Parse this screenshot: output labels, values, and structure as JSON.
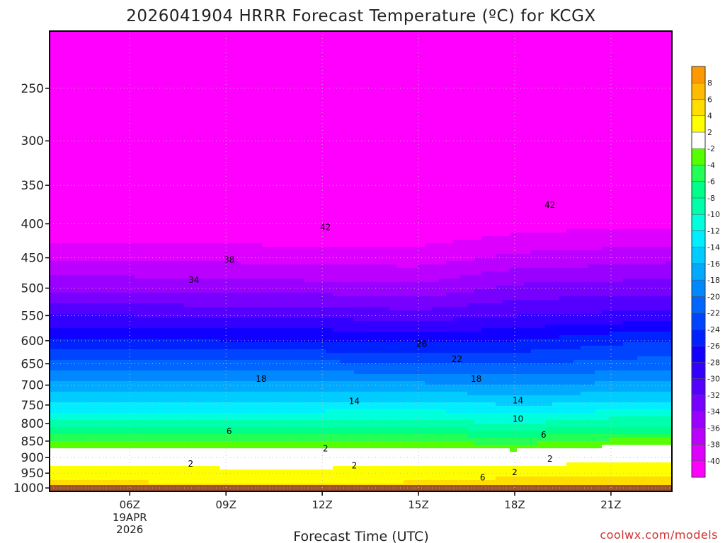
{
  "chart_data": {
    "type": "heatmap",
    "title": "2026041904 HRRR Forecast Temperature (ºC) for KCGX",
    "xlabel": "Forecast Time (UTC)",
    "ylabel": "",
    "credit": "coolwx.com/models",
    "x_range_hours": [
      3.5,
      22.9
    ],
    "y_axis_scale": "log-pressure",
    "y_range_hpa": [
      1000,
      200
    ],
    "x_ticks": [
      {
        "hour": 6,
        "label": "06Z",
        "sub": [
          "19APR",
          "2026"
        ]
      },
      {
        "hour": 9,
        "label": "09Z",
        "sub": []
      },
      {
        "hour": 12,
        "label": "12Z",
        "sub": []
      },
      {
        "hour": 15,
        "label": "15Z",
        "sub": []
      },
      {
        "hour": 18,
        "label": "18Z",
        "sub": []
      },
      {
        "hour": 21,
        "label": "21Z",
        "sub": []
      }
    ],
    "y_ticks": [
      250,
      300,
      350,
      400,
      450,
      500,
      550,
      600,
      650,
      700,
      750,
      800,
      850,
      900,
      950,
      1000
    ],
    "ground_pressure_hpa": 990,
    "ground_color": "#a0522d",
    "colorbar": {
      "levels": [
        -42,
        -40,
        -38,
        -36,
        -34,
        -32,
        -30,
        -28,
        -26,
        -24,
        -22,
        -20,
        -18,
        -16,
        -14,
        -12,
        -10,
        -8,
        -6,
        -4,
        -2,
        2,
        4,
        6,
        8,
        10
      ],
      "labels": [
        "-40",
        "-38",
        "-36",
        "-34",
        "-32",
        "-30",
        "-28",
        "-26",
        "-24",
        "-22",
        "-20",
        "-18",
        "-16",
        "-14",
        "-12",
        "-10",
        "-8",
        "-6",
        "-4",
        "-2",
        "2",
        "4",
        "6",
        "8"
      ],
      "colors": [
        "#ff00ff",
        "#dd00ff",
        "#bb00ff",
        "#9900ff",
        "#7700ff",
        "#5500ff",
        "#3300ff",
        "#1100ff",
        "#0022ff",
        "#0044ff",
        "#0066ff",
        "#0088ff",
        "#00aaff",
        "#00ccff",
        "#00eeff",
        "#00ffdd",
        "#00ffaa",
        "#00ff88",
        "#22ff55",
        "#55ff00",
        "#ffffff",
        "#ffff00",
        "#ffdd00",
        "#ffbb00",
        "#ff9900"
      ]
    },
    "temperature_profile": {
      "hours": [
        3.5,
        6,
        9,
        12,
        15,
        18,
        21,
        22.9
      ],
      "pressures": [
        990,
        950,
        900,
        850,
        800,
        750,
        700,
        650,
        600,
        550,
        500,
        450,
        400,
        350,
        300,
        250,
        200
      ],
      "temps_c": [
        [
          4.5,
          3.0,
          1.0,
          -4.0,
          -9.0,
          -13.5,
          -17.0,
          -21.0,
          -25.5,
          -30.0,
          -34.5,
          -38.5,
          -42.0,
          -45.0,
          -48.0,
          -50.0,
          -52.0
        ],
        [
          4.5,
          3.0,
          1.0,
          -4.0,
          -9.0,
          -13.5,
          -17.0,
          -21.0,
          -25.5,
          -30.0,
          -34.5,
          -38.5,
          -42.0,
          -44.5,
          -47.5,
          -49.5,
          -52.0
        ],
        [
          4.0,
          2.5,
          1.0,
          -4.0,
          -9.0,
          -13.5,
          -17.5,
          -21.5,
          -26.0,
          -30.5,
          -35.0,
          -38.5,
          -42.0,
          -44.5,
          -47.5,
          -49.5,
          -52.0
        ],
        [
          4.0,
          2.5,
          1.0,
          -4.0,
          -9.0,
          -13.5,
          -17.5,
          -21.5,
          -26.0,
          -30.5,
          -35.0,
          -39.0,
          -42.5,
          -45.0,
          -48.0,
          -50.0,
          -52.0
        ],
        [
          4.5,
          3.0,
          1.0,
          -4.0,
          -9.0,
          -13.0,
          -17.5,
          -22.0,
          -26.5,
          -31.0,
          -35.5,
          -39.0,
          -42.0,
          -45.0,
          -48.0,
          -50.0,
          -52.0
        ],
        [
          5.5,
          3.0,
          0.5,
          -5.0,
          -10.0,
          -14.0,
          -18.0,
          -22.0,
          -26.0,
          -30.0,
          -33.5,
          -37.5,
          -41.0,
          -44.0,
          -47.0,
          -49.5,
          -52.0
        ],
        [
          5.0,
          3.5,
          1.5,
          -3.5,
          -8.5,
          -13.5,
          -17.5,
          -21.5,
          -24.5,
          -29.5,
          -33.0,
          -37.0,
          -40.5,
          -43.5,
          -47.0,
          -49.5,
          -52.0
        ],
        [
          5.0,
          3.5,
          1.5,
          -3.5,
          -8.5,
          -13.5,
          -17.5,
          -21.0,
          -24.0,
          -29.0,
          -33.0,
          -36.5,
          -40.5,
          -43.5,
          -47.0,
          -49.5,
          -52.0
        ]
      ]
    },
    "contour_labels": [
      {
        "text": "42",
        "hour": 12.1,
        "p": 405
      },
      {
        "text": "42",
        "hour": 19.1,
        "p": 375
      },
      {
        "text": "38",
        "hour": 9.1,
        "p": 453
      },
      {
        "text": "34",
        "hour": 8.0,
        "p": 486
      },
      {
        "text": "26",
        "hour": 15.1,
        "p": 607
      },
      {
        "text": "22",
        "hour": 16.2,
        "p": 640
      },
      {
        "text": "18",
        "hour": 10.1,
        "p": 685
      },
      {
        "text": "18",
        "hour": 16.8,
        "p": 685
      },
      {
        "text": "14",
        "hour": 13.0,
        "p": 740
      },
      {
        "text": "14",
        "hour": 18.1,
        "p": 738
      },
      {
        "text": "10",
        "hour": 18.1,
        "p": 787
      },
      {
        "text": "6",
        "hour": 9.1,
        "p": 822
      },
      {
        "text": "6",
        "hour": 18.9,
        "p": 832
      },
      {
        "text": "2",
        "hour": 12.1,
        "p": 872
      },
      {
        "text": "2",
        "hour": 19.1,
        "p": 904
      },
      {
        "text": "2",
        "hour": 7.9,
        "p": 920
      },
      {
        "text": "2",
        "hour": 13.0,
        "p": 925
      },
      {
        "text": "2",
        "hour": 18.0,
        "p": 947
      },
      {
        "text": "6",
        "hour": 17.0,
        "p": 965
      }
    ]
  }
}
